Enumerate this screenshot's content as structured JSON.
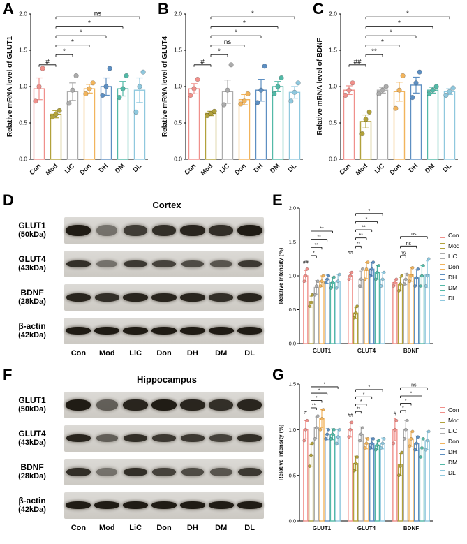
{
  "palette": {
    "Con": "#F0908B",
    "Mod": "#B2A23B",
    "LiC": "#ACACAC",
    "Don": "#F2B45C",
    "DH": "#5D8FC2",
    "DM": "#53B9A7",
    "DL": "#8FC8DE"
  },
  "series_order": [
    "Con",
    "Mod",
    "LiC",
    "Don",
    "DH",
    "DM",
    "DL"
  ],
  "panels": {
    "A": {
      "label": "A"
    },
    "B": {
      "label": "B"
    },
    "C": {
      "label": "C"
    },
    "D": {
      "label": "D"
    },
    "E": {
      "label": "E"
    },
    "F": {
      "label": "F"
    },
    "G": {
      "label": "G"
    }
  },
  "legend": {
    "entries": [
      "Con",
      "Mod",
      "LiC",
      "Don",
      "DH",
      "DM",
      "DL"
    ]
  },
  "blots": {
    "D": {
      "title": "Cortex",
      "lanes": [
        "Con",
        "Mod",
        "LiC",
        "Don",
        "DH",
        "DM",
        "DL"
      ],
      "rows": [
        {
          "name": "GLUT1",
          "kda": "(50kDa)",
          "h": 16,
          "bands": [
            0.95,
            0.5,
            0.78,
            0.85,
            0.9,
            0.85,
            0.95
          ]
        },
        {
          "name": "GLUT4",
          "kda": "(43kDa)",
          "h": 10,
          "bands": [
            0.85,
            0.5,
            0.8,
            0.75,
            0.7,
            0.65,
            0.8
          ]
        },
        {
          "name": "BDNF",
          "kda": "(28kDa)",
          "h": 12,
          "bands": [
            0.9,
            0.85,
            0.9,
            0.9,
            0.9,
            0.85,
            0.9
          ]
        },
        {
          "name": "β-actin",
          "kda": "(42kDa)",
          "h": 11,
          "bands": [
            0.95,
            0.95,
            0.95,
            0.95,
            0.95,
            0.95,
            0.95
          ]
        }
      ]
    },
    "F": {
      "title": "Hippocampus",
      "lanes": [
        "Con",
        "Mod",
        "LiC",
        "Don",
        "DH",
        "DM",
        "DL"
      ],
      "rows": [
        {
          "name": "GLUT1",
          "kda": "(50kDa)",
          "h": 16,
          "bands": [
            0.95,
            0.6,
            0.9,
            0.95,
            0.9,
            0.85,
            0.9
          ]
        },
        {
          "name": "GLUT4",
          "kda": "(43kDa)",
          "h": 11,
          "bands": [
            0.9,
            0.6,
            0.85,
            0.8,
            0.8,
            0.75,
            0.85
          ]
        },
        {
          "name": "BDNF",
          "kda": "(28kDa)",
          "h": 12,
          "bands": [
            0.85,
            0.5,
            0.85,
            0.75,
            0.7,
            0.65,
            0.8
          ]
        },
        {
          "name": "β-actin",
          "kda": "(42kDa)",
          "h": 11,
          "bands": [
            0.95,
            0.95,
            0.95,
            0.95,
            0.95,
            0.95,
            0.95
          ]
        }
      ]
    }
  },
  "chart_data": [
    {
      "id": "chartA",
      "panel": "A",
      "type": "bar",
      "ylabel": "Relative mRNA level of GLUT1",
      "categories": [
        "Con",
        "Mod",
        "LiC",
        "Don",
        "DH",
        "DM",
        "DL"
      ],
      "values": [
        0.97,
        0.62,
        0.93,
        0.97,
        1.0,
        0.97,
        0.95
      ],
      "errors": [
        0.15,
        0.05,
        0.12,
        0.06,
        0.12,
        0.1,
        0.17
      ],
      "dots": [
        [
          0.8,
          1.0,
          1.25
        ],
        [
          0.58,
          0.62,
          0.67
        ],
        [
          0.77,
          0.95,
          1.15
        ],
        [
          0.9,
          0.97,
          1.05
        ],
        [
          0.88,
          1.0,
          1.25
        ],
        [
          0.85,
          0.97,
          1.15
        ],
        [
          0.65,
          1.0,
          1.2
        ]
      ],
      "ylim": [
        0,
        2.0
      ],
      "yticks": [
        0.0,
        0.5,
        1.0,
        1.5,
        2.0
      ],
      "annotations": [
        {
          "a": 0,
          "b": 1,
          "y": 1.3,
          "t": "#"
        },
        {
          "a": 1,
          "b": 2,
          "y": 1.44,
          "t": "*"
        },
        {
          "a": 1,
          "b": 3,
          "y": 1.57,
          "t": "*"
        },
        {
          "a": 1,
          "b": 4,
          "y": 1.7,
          "t": "*"
        },
        {
          "a": 1,
          "b": 5,
          "y": 1.83,
          "t": "*"
        },
        {
          "a": 1,
          "b": 6,
          "y": 1.96,
          "t": "ns"
        }
      ]
    },
    {
      "id": "chartB",
      "panel": "B",
      "type": "bar",
      "ylabel": "Relative mRNA level of GLUT4",
      "categories": [
        "Con",
        "Mod",
        "LiC",
        "Don",
        "DH",
        "DM",
        "DL"
      ],
      "values": [
        0.97,
        0.63,
        0.93,
        0.82,
        0.95,
        1.0,
        0.92
      ],
      "errors": [
        0.07,
        0.03,
        0.16,
        0.07,
        0.15,
        0.07,
        0.08
      ],
      "dots": [
        [
          0.88,
          0.97,
          1.1
        ],
        [
          0.6,
          0.63,
          0.66
        ],
        [
          0.75,
          0.95,
          1.3
        ],
        [
          0.76,
          0.8,
          0.9
        ],
        [
          0.78,
          0.95,
          1.28
        ],
        [
          0.9,
          1.0,
          1.12
        ],
        [
          0.8,
          0.92,
          1.05
        ]
      ],
      "ylim": [
        0,
        2.0
      ],
      "yticks": [
        0.0,
        0.5,
        1.0,
        1.5,
        2.0
      ],
      "annotations": [
        {
          "a": 0,
          "b": 1,
          "y": 1.3,
          "t": "#"
        },
        {
          "a": 1,
          "b": 2,
          "y": 1.44,
          "t": "*"
        },
        {
          "a": 1,
          "b": 3,
          "y": 1.57,
          "t": "ns"
        },
        {
          "a": 1,
          "b": 4,
          "y": 1.7,
          "t": "*"
        },
        {
          "a": 1,
          "b": 5,
          "y": 1.83,
          "t": "*"
        },
        {
          "a": 1,
          "b": 6,
          "y": 1.96,
          "t": "*"
        }
      ]
    },
    {
      "id": "chartC",
      "panel": "C",
      "type": "bar",
      "ylabel": "Relative mRNA level of BDNF",
      "categories": [
        "Con",
        "Mod",
        "LiC",
        "Don",
        "DH",
        "DM",
        "DL"
      ],
      "values": [
        0.95,
        0.52,
        0.95,
        0.93,
        1.02,
        0.95,
        0.93
      ],
      "errors": [
        0.06,
        0.09,
        0.04,
        0.13,
        0.11,
        0.04,
        0.04
      ],
      "dots": [
        [
          0.88,
          0.95,
          1.05
        ],
        [
          0.35,
          0.55,
          0.65
        ],
        [
          0.9,
          0.95,
          1.0
        ],
        [
          0.7,
          0.95,
          1.15
        ],
        [
          0.85,
          1.05,
          1.2
        ],
        [
          0.9,
          0.95,
          1.0
        ],
        [
          0.88,
          0.93,
          0.98
        ]
      ],
      "ylim": [
        0,
        2.0
      ],
      "yticks": [
        0.0,
        0.5,
        1.0,
        1.5,
        2.0
      ],
      "annotations": [
        {
          "a": 0,
          "b": 1,
          "y": 1.3,
          "t": "##"
        },
        {
          "a": 1,
          "b": 2,
          "y": 1.44,
          "t": "**"
        },
        {
          "a": 1,
          "b": 3,
          "y": 1.57,
          "t": "*"
        },
        {
          "a": 1,
          "b": 4,
          "y": 1.7,
          "t": "*"
        },
        {
          "a": 1,
          "b": 5,
          "y": 1.83,
          "t": "*"
        },
        {
          "a": 1,
          "b": 6,
          "y": 1.96,
          "t": "*"
        }
      ]
    },
    {
      "id": "chartE",
      "panel": "E",
      "type": "bar",
      "grouped": true,
      "ylabel": "Relative Intensity (%)",
      "groups": [
        "GLUT1",
        "GLUT4",
        "BDNF"
      ],
      "series": [
        {
          "name": "Con",
          "values": [
            1.0,
            1.0,
            0.9
          ],
          "errors": [
            0.08,
            0.05,
            0.05
          ],
          "dots": [
            [
              0.92,
              1.0,
              1.1
            ],
            [
              0.95,
              1.0,
              1.05
            ],
            [
              0.85,
              0.9,
              0.95
            ]
          ]
        },
        {
          "name": "Mod",
          "values": [
            0.62,
            0.45,
            0.88
          ],
          "errors": [
            0.08,
            0.08,
            0.1
          ],
          "dots": [
            [
              0.55,
              0.6,
              0.72
            ],
            [
              0.38,
              0.45,
              0.55
            ],
            [
              0.78,
              0.88,
              1.0
            ]
          ]
        },
        {
          "name": "LiC",
          "values": [
            0.83,
            0.95,
            0.95
          ],
          "errors": [
            0.1,
            0.12,
            0.08
          ],
          "dots": [
            [
              0.72,
              0.85,
              0.92
            ],
            [
              0.85,
              0.95,
              1.1
            ],
            [
              0.88,
              0.95,
              1.02
            ]
          ]
        },
        {
          "name": "Don",
          "values": [
            0.92,
            1.08,
            1.02
          ],
          "errors": [
            0.08,
            0.12,
            0.1
          ],
          "dots": [
            [
              0.85,
              0.92,
              1.0
            ],
            [
              0.95,
              1.1,
              1.2
            ],
            [
              0.92,
              1.0,
              1.12
            ]
          ]
        },
        {
          "name": "DH",
          "values": [
            0.95,
            1.1,
            0.97
          ],
          "errors": [
            0.06,
            0.1,
            0.12
          ],
          "dots": [
            [
              0.9,
              0.95,
              1.0
            ],
            [
              1.0,
              1.1,
              1.2
            ],
            [
              0.85,
              0.97,
              1.1
            ]
          ]
        },
        {
          "name": "DM",
          "values": [
            0.9,
            1.05,
            1.0
          ],
          "errors": [
            0.08,
            0.1,
            0.15
          ],
          "dots": [
            [
              0.82,
              0.9,
              0.98
            ],
            [
              0.95,
              1.05,
              1.15
            ],
            [
              0.85,
              1.0,
              1.15
            ]
          ]
        },
        {
          "name": "DL",
          "values": [
            0.92,
            0.95,
            1.02
          ],
          "errors": [
            0.1,
            0.1,
            0.2
          ],
          "dots": [
            [
              0.82,
              0.92,
              1.02
            ],
            [
              0.85,
              0.95,
              1.05
            ],
            [
              0.85,
              1.0,
              1.25
            ]
          ]
        }
      ],
      "ylim": [
        0,
        2.0
      ],
      "yticks": [
        0.0,
        0.5,
        1.0,
        1.5,
        2.0
      ],
      "annotations": [
        {
          "a": 0,
          "y": 1.18,
          "t": "##",
          "text": true
        },
        {
          "a": 1,
          "b": 2,
          "y": 1.3,
          "t": "*"
        },
        {
          "a": 1,
          "b": 3,
          "y": 1.42,
          "t": "**"
        },
        {
          "a": 1,
          "b": 4,
          "y": 1.54,
          "t": "**"
        },
        {
          "a": 1,
          "b": 5,
          "y": 1.66,
          "t": "**"
        },
        {
          "a": 7,
          "y": 1.32,
          "t": "##",
          "text": true
        },
        {
          "a": 8,
          "b": 9,
          "y": 1.44,
          "t": "**"
        },
        {
          "a": 8,
          "b": 10,
          "y": 1.56,
          "t": "**"
        },
        {
          "a": 8,
          "b": 11,
          "y": 1.68,
          "t": "**"
        },
        {
          "a": 8,
          "b": 12,
          "y": 1.8,
          "t": "*"
        },
        {
          "a": 8,
          "b": 13,
          "y": 1.92,
          "t": "*"
        },
        {
          "a": 15,
          "b": 16,
          "y": 1.3,
          "t": "ns"
        },
        {
          "a": 15,
          "b": 18,
          "y": 1.44,
          "t": "ns"
        },
        {
          "a": 15,
          "b": 20,
          "y": 1.58,
          "t": "ns"
        }
      ]
    },
    {
      "id": "chartG",
      "panel": "G",
      "type": "bar",
      "grouped": true,
      "ylabel": "Relative Intensity (%)",
      "groups": [
        "GLUT1",
        "GLUT4",
        "BDNF"
      ],
      "series": [
        {
          "name": "Con",
          "values": [
            1.0,
            1.0,
            1.0
          ],
          "errors": [
            0.1,
            0.08,
            0.12
          ],
          "dots": [
            [
              0.88,
              1.0,
              1.1
            ],
            [
              0.92,
              1.0,
              1.08
            ],
            [
              0.85,
              1.0,
              1.1
            ]
          ]
        },
        {
          "name": "Mod",
          "values": [
            0.72,
            0.63,
            0.62
          ],
          "errors": [
            0.12,
            0.08,
            0.12
          ],
          "dots": [
            [
              0.6,
              0.72,
              0.85
            ],
            [
              0.55,
              0.63,
              0.7
            ],
            [
              0.5,
              0.6,
              0.75
            ]
          ]
        },
        {
          "name": "LiC",
          "values": [
            1.02,
            0.95,
            1.0
          ],
          "errors": [
            0.12,
            0.08,
            0.1
          ],
          "dots": [
            [
              0.9,
              1.02,
              1.15
            ],
            [
              0.88,
              0.95,
              1.02
            ],
            [
              0.9,
              1.0,
              1.1
            ]
          ]
        },
        {
          "name": "Don",
          "values": [
            1.12,
            0.85,
            0.9
          ],
          "errors": [
            0.1,
            0.06,
            0.08
          ],
          "dots": [
            [
              1.0,
              1.12,
              1.22
            ],
            [
              0.8,
              0.85,
              0.9
            ],
            [
              0.82,
              0.9,
              0.98
            ]
          ]
        },
        {
          "name": "DH",
          "values": [
            0.95,
            0.85,
            0.85
          ],
          "errors": [
            0.06,
            0.06,
            0.08
          ],
          "dots": [
            [
              0.9,
              0.95,
              1.0
            ],
            [
              0.8,
              0.85,
              0.9
            ],
            [
              0.78,
              0.85,
              0.92
            ]
          ]
        },
        {
          "name": "DM",
          "values": [
            0.95,
            0.83,
            0.8
          ],
          "errors": [
            0.06,
            0.05,
            0.1
          ],
          "dots": [
            [
              0.9,
              0.95,
              1.0
            ],
            [
              0.78,
              0.83,
              0.88
            ],
            [
              0.7,
              0.8,
              0.9
            ]
          ]
        },
        {
          "name": "DL",
          "values": [
            0.92,
            0.85,
            0.88
          ],
          "errors": [
            0.08,
            0.06,
            0.1
          ],
          "dots": [
            [
              0.85,
              0.92,
              1.0
            ],
            [
              0.8,
              0.85,
              0.9
            ],
            [
              0.78,
              0.88,
              0.98
            ]
          ]
        }
      ],
      "ylim": [
        0,
        1.5
      ],
      "yticks": [
        0.0,
        0.5,
        1.0,
        1.5
      ],
      "annotations": [
        {
          "a": 0,
          "y": 1.17,
          "t": "#",
          "text": true
        },
        {
          "a": 1,
          "b": 2,
          "y": 1.24,
          "t": "**"
        },
        {
          "a": 1,
          "b": 3,
          "y": 1.32,
          "t": "*"
        },
        {
          "a": 1,
          "b": 4,
          "y": 1.4,
          "t": "*"
        },
        {
          "a": 1,
          "b": 6,
          "y": 1.47,
          "t": "*"
        },
        {
          "a": 7,
          "y": 1.14,
          "t": "##",
          "text": true
        },
        {
          "a": 8,
          "b": 9,
          "y": 1.2,
          "t": "**"
        },
        {
          "a": 8,
          "b": 10,
          "y": 1.28,
          "t": "*"
        },
        {
          "a": 8,
          "b": 11,
          "y": 1.36,
          "t": "*"
        },
        {
          "a": 8,
          "b": 13,
          "y": 1.44,
          "t": "*"
        },
        {
          "a": 14,
          "y": 1.16,
          "t": "#",
          "text": true
        },
        {
          "a": 15,
          "b": 16,
          "y": 1.21,
          "t": "*"
        },
        {
          "a": 15,
          "b": 17,
          "y": 1.29,
          "t": "*"
        },
        {
          "a": 15,
          "b": 19,
          "y": 1.37,
          "t": "*"
        },
        {
          "a": 15,
          "b": 20,
          "y": 1.46,
          "t": "ns"
        }
      ]
    }
  ]
}
